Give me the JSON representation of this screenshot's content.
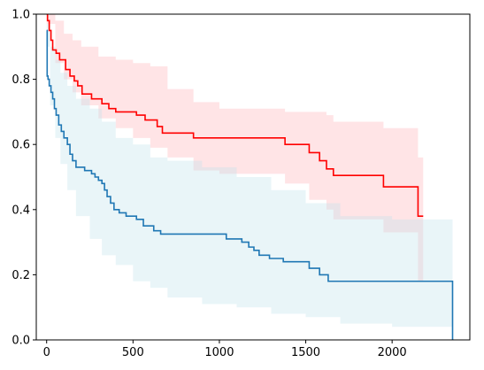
{
  "chart_data": {
    "type": "line",
    "title": "",
    "xlabel": "",
    "ylabel": "",
    "xlim": [
      -60,
      2450
    ],
    "ylim": [
      0,
      1
    ],
    "grid": false,
    "legend": "none",
    "x_ticks": [
      0,
      500,
      1000,
      1500,
      2000
    ],
    "x_tick_labels": [
      "0",
      "500",
      "1000",
      "1500",
      "2000"
    ],
    "y_ticks": [
      0,
      0.2,
      0.4,
      0.6,
      0.8,
      1.0
    ],
    "y_tick_labels": [
      "0.0",
      "0.2",
      "0.4",
      "0.6",
      "0.8",
      "1.0"
    ],
    "series": [
      {
        "color": "#ff0000",
        "band_color": "#ffb3b8",
        "step": [
          [
            0,
            1.0
          ],
          [
            5,
            0.98
          ],
          [
            15,
            0.95
          ],
          [
            25,
            0.92
          ],
          [
            35,
            0.89
          ],
          [
            55,
            0.88
          ],
          [
            75,
            0.86
          ],
          [
            110,
            0.83
          ],
          [
            135,
            0.81
          ],
          [
            160,
            0.795
          ],
          [
            180,
            0.78
          ],
          [
            205,
            0.755
          ],
          [
            260,
            0.74
          ],
          [
            320,
            0.725
          ],
          [
            360,
            0.71
          ],
          [
            400,
            0.7
          ],
          [
            520,
            0.69
          ],
          [
            570,
            0.675
          ],
          [
            640,
            0.655
          ],
          [
            670,
            0.635
          ],
          [
            850,
            0.62
          ],
          [
            1380,
            0.6
          ],
          [
            1520,
            0.575
          ],
          [
            1580,
            0.55
          ],
          [
            1620,
            0.525
          ],
          [
            1660,
            0.505
          ],
          [
            1950,
            0.47
          ],
          [
            2150,
            0.38
          ],
          [
            2180,
            0.38
          ]
        ],
        "band": [
          [
            0,
            0.97,
            1.0
          ],
          [
            50,
            0.85,
            0.98
          ],
          [
            100,
            0.8,
            0.94
          ],
          [
            150,
            0.76,
            0.92
          ],
          [
            200,
            0.72,
            0.9
          ],
          [
            300,
            0.68,
            0.87
          ],
          [
            400,
            0.65,
            0.86
          ],
          [
            500,
            0.62,
            0.85
          ],
          [
            600,
            0.59,
            0.84
          ],
          [
            700,
            0.56,
            0.77
          ],
          [
            850,
            0.52,
            0.73
          ],
          [
            1000,
            0.51,
            0.71
          ],
          [
            1380,
            0.48,
            0.7
          ],
          [
            1520,
            0.43,
            0.7
          ],
          [
            1620,
            0.4,
            0.69
          ],
          [
            1660,
            0.37,
            0.67
          ],
          [
            1950,
            0.33,
            0.65
          ],
          [
            2150,
            0.18,
            0.56
          ],
          [
            2180,
            0.18,
            0.56
          ]
        ]
      },
      {
        "color": "#1f77b4",
        "band_color": "#bfe3ea",
        "step": [
          [
            0,
            0.95
          ],
          [
            3,
            0.81
          ],
          [
            8,
            0.8
          ],
          [
            15,
            0.78
          ],
          [
            25,
            0.76
          ],
          [
            35,
            0.74
          ],
          [
            45,
            0.71
          ],
          [
            55,
            0.69
          ],
          [
            70,
            0.66
          ],
          [
            85,
            0.64
          ],
          [
            100,
            0.62
          ],
          [
            120,
            0.6
          ],
          [
            135,
            0.57
          ],
          [
            150,
            0.55
          ],
          [
            170,
            0.53
          ],
          [
            220,
            0.52
          ],
          [
            260,
            0.51
          ],
          [
            280,
            0.5
          ],
          [
            300,
            0.49
          ],
          [
            320,
            0.48
          ],
          [
            335,
            0.46
          ],
          [
            350,
            0.44
          ],
          [
            370,
            0.42
          ],
          [
            390,
            0.4
          ],
          [
            420,
            0.39
          ],
          [
            460,
            0.38
          ],
          [
            520,
            0.37
          ],
          [
            560,
            0.35
          ],
          [
            620,
            0.335
          ],
          [
            660,
            0.325
          ],
          [
            1040,
            0.31
          ],
          [
            1130,
            0.3
          ],
          [
            1170,
            0.285
          ],
          [
            1200,
            0.275
          ],
          [
            1230,
            0.26
          ],
          [
            1290,
            0.25
          ],
          [
            1370,
            0.24
          ],
          [
            1520,
            0.22
          ],
          [
            1580,
            0.2
          ],
          [
            1630,
            0.18
          ],
          [
            2350,
            0.0
          ],
          [
            2355,
            0.0
          ]
        ],
        "band": [
          [
            0,
            0.9,
            0.97
          ],
          [
            20,
            0.72,
            0.9
          ],
          [
            50,
            0.62,
            0.86
          ],
          [
            80,
            0.54,
            0.82
          ],
          [
            120,
            0.46,
            0.78
          ],
          [
            170,
            0.38,
            0.74
          ],
          [
            250,
            0.31,
            0.71
          ],
          [
            320,
            0.26,
            0.67
          ],
          [
            400,
            0.23,
            0.62
          ],
          [
            500,
            0.18,
            0.6
          ],
          [
            600,
            0.16,
            0.56
          ],
          [
            700,
            0.13,
            0.55
          ],
          [
            900,
            0.11,
            0.53
          ],
          [
            1100,
            0.1,
            0.5
          ],
          [
            1300,
            0.08,
            0.46
          ],
          [
            1500,
            0.07,
            0.42
          ],
          [
            1700,
            0.05,
            0.38
          ],
          [
            2000,
            0.04,
            0.37
          ],
          [
            2350,
            0.04,
            0.37
          ]
        ]
      }
    ]
  }
}
